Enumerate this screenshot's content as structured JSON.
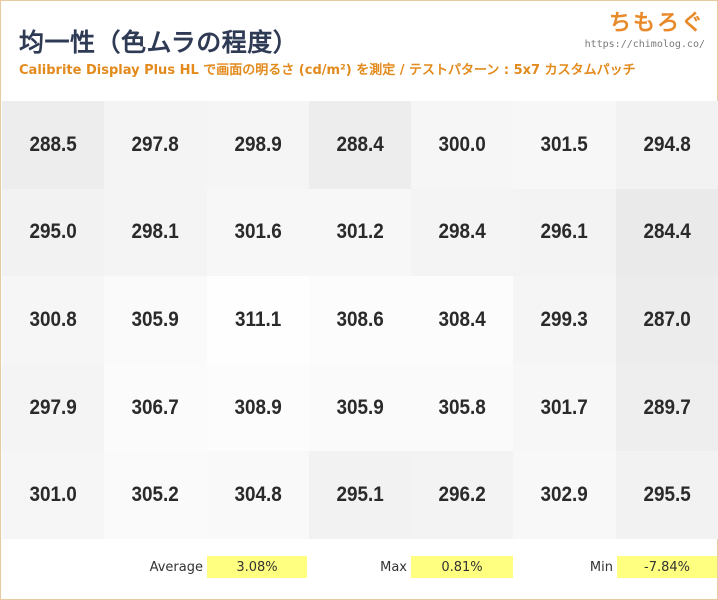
{
  "header": {
    "title": "均一性（色ムラの程度）",
    "subtitle": "Calibrite Display Plus HL で画面の明るさ (cd/m²) を測定 / テストパターン : 5x7 カスタムパッチ",
    "brand_logo": "ちもろぐ",
    "brand_url": "https://chimolog.co/"
  },
  "colors": {
    "accent": "#e38a1d",
    "title": "#2f3b55",
    "highlight": "#ffff80"
  },
  "chart_data": {
    "type": "heatmap",
    "rows": 5,
    "cols": 7,
    "values": [
      [
        "288.5",
        "297.8",
        "298.9",
        "288.4",
        "300.0",
        "301.5",
        "294.8"
      ],
      [
        "295.0",
        "298.1",
        "301.6",
        "301.2",
        "298.4",
        "296.1",
        "284.4"
      ],
      [
        "300.8",
        "305.9",
        "311.1",
        "308.6",
        "308.4",
        "299.3",
        "287.0"
      ],
      [
        "297.9",
        "306.7",
        "308.9",
        "305.9",
        "305.8",
        "301.7",
        "289.7"
      ],
      [
        "301.0",
        "305.2",
        "304.8",
        "295.1",
        "296.2",
        "302.9",
        "295.5"
      ]
    ],
    "unit": "cd/m²"
  },
  "stats": [
    {
      "label": "Average",
      "value": "3.08%"
    },
    {
      "label": "Max",
      "value": "0.81%"
    },
    {
      "label": "Min",
      "value": "-7.84%"
    }
  ]
}
